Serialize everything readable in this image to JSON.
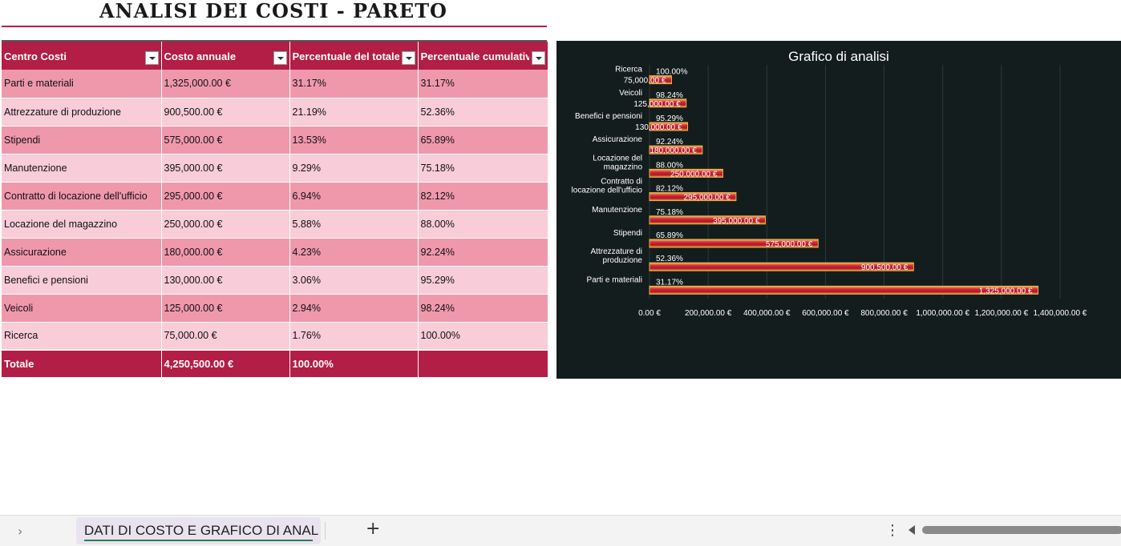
{
  "title": "ANALISI DEI COSTI - PARETO",
  "table": {
    "headers": [
      "Centro Costi",
      "Costo annuale",
      "Percentuale del totale",
      "Percentuale cumulativa"
    ],
    "rows": [
      {
        "center": "Parti e materiali",
        "cost": "1,325,000.00 €",
        "pct": "31.17%",
        "cum": "31.17%"
      },
      {
        "center": "Attrezzature di produzione",
        "cost": "900,500.00 €",
        "pct": "21.19%",
        "cum": "52.36%"
      },
      {
        "center": "Stipendi",
        "cost": "575,000.00 €",
        "pct": "13.53%",
        "cum": "65.89%"
      },
      {
        "center": "Manutenzione",
        "cost": "395,000.00 €",
        "pct": "9.29%",
        "cum": "75.18%"
      },
      {
        "center": "Contratto di locazione dell'ufficio",
        "cost": "295,000.00 €",
        "pct": "6.94%",
        "cum": "82.12%"
      },
      {
        "center": "Locazione del magazzino",
        "cost": "250,000.00 €",
        "pct": "5.88%",
        "cum": "88.00%"
      },
      {
        "center": "Assicurazione",
        "cost": "180,000.00 €",
        "pct": "4.23%",
        "cum": "92.24%"
      },
      {
        "center": "Benefici e pensioni",
        "cost": "130,000.00 €",
        "pct": "3.06%",
        "cum": "95.29%"
      },
      {
        "center": "Veicoli",
        "cost": "125,000.00 €",
        "pct": "2.94%",
        "cum": "98.24%"
      },
      {
        "center": "Ricerca",
        "cost": "75,000.00 €",
        "pct": "1.76%",
        "cum": "100.00%"
      }
    ],
    "total": {
      "label": "Totale",
      "cost": "4,250,500.00 €",
      "pct": "100.00%",
      "cum": ""
    }
  },
  "chart_data": {
    "type": "bar",
    "orientation": "horizontal",
    "title": "Grafico di analisi",
    "categories": [
      "Ricerca",
      "Veicoli",
      "Benefici e pensioni",
      "Assicurazione",
      "Locazione del magazzino",
      "Contratto di locazione dell'ufficio",
      "Manutenzione",
      "Stipendi",
      "Attrezzature di produzione",
      "Parti e materiali"
    ],
    "values": [
      75000,
      125000,
      130000,
      180000,
      250000,
      295000,
      395000,
      575000,
      900500,
      1325000
    ],
    "value_labels": [
      "75,000.00 €",
      "125,000.00 €",
      "130,000.00 €",
      "180,000.00 €",
      "250,000.00 €",
      "295,000.00 €",
      "395,000.00 €",
      "575,000.00 €",
      "900,500.00 €",
      "1,325,000.00 €"
    ],
    "cumulative_labels": [
      "100.00%",
      "98.24%",
      "95.29%",
      "92.24%",
      "88.00%",
      "82.12%",
      "75.18%",
      "65.89%",
      "52.36%",
      "31.17%"
    ],
    "xlim": [
      0,
      1400000
    ],
    "xticks": [
      "0.00 €",
      "200,000.00 €",
      "400,000.00 €",
      "600,000.00 €",
      "800,000.00 €",
      "1,000,000.00 €",
      "1,200,000.00 €",
      "1,400,000.00 €"
    ],
    "grid": true,
    "colors": {
      "background": "#141d1d",
      "bar": "#c41f35",
      "bar_edge": "#e8b840",
      "text": "#ffffff",
      "grid": "#2c3838"
    }
  },
  "sheet_tabs": {
    "active": "DATI DI COSTO E GRAFICO DI ANAL"
  },
  "colors": {
    "accent": "#b21e45",
    "row_dark": "#ef98ac",
    "row_light": "#f8ccd8"
  }
}
